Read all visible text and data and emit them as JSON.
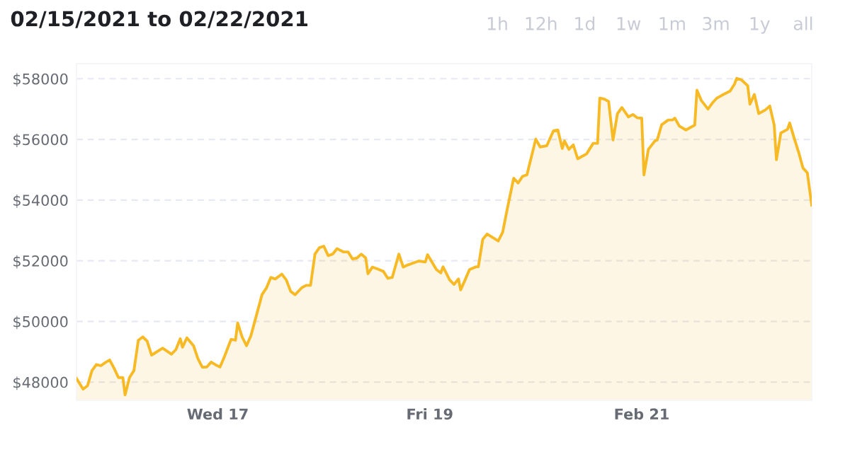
{
  "chart_data": {
    "type": "area",
    "title": "02/15/2021 to 02/22/2021",
    "annotations": [
      "1h",
      "12h",
      "1d",
      "1w",
      "1m",
      "3m",
      "1y",
      "all"
    ],
    "xlim": [
      "2021-02-15T16:00",
      "2021-02-22T14:30"
    ],
    "xticks": [
      {
        "value": "2021-02-17",
        "label": "Wed 17"
      },
      {
        "value": "2021-02-19",
        "label": "Fri 19"
      },
      {
        "value": "2021-02-21",
        "label": "Feb 21"
      }
    ],
    "ylim": [
      47400,
      58500
    ],
    "yticks": [
      {
        "value": 48000,
        "label": "$48000"
      },
      {
        "value": 50000,
        "label": "$50000"
      },
      {
        "value": 52000,
        "label": "$52000"
      },
      {
        "value": 54000,
        "label": "$54000"
      },
      {
        "value": 56000,
        "label": "$56000"
      },
      {
        "value": 58000,
        "label": "$58000"
      }
    ],
    "grid": "y",
    "legend": false,
    "x": [
      "2021-02-15T16:00",
      "2021-02-15T17:30",
      "2021-02-15T18:30",
      "2021-02-15T19:30",
      "2021-02-15T20:30",
      "2021-02-15T21:30",
      "2021-02-15T22:30",
      "2021-02-15T23:30",
      "2021-02-16T00:30",
      "2021-02-16T01:30",
      "2021-02-16T02:30",
      "2021-02-16T03:00",
      "2021-02-16T04:00",
      "2021-02-16T05:00",
      "2021-02-16T06:00",
      "2021-02-16T07:00",
      "2021-02-16T08:00",
      "2021-02-16T09:00",
      "2021-02-16T11:30",
      "2021-02-16T13:30",
      "2021-02-16T14:30",
      "2021-02-16T15:30",
      "2021-02-16T16:00",
      "2021-02-16T17:00",
      "2021-02-16T18:30",
      "2021-02-16T19:30",
      "2021-02-16T20:30",
      "2021-02-16T21:30",
      "2021-02-16T22:30",
      "2021-02-16T23:30",
      "2021-02-17T00:30",
      "2021-02-17T01:30",
      "2021-02-17T03:00",
      "2021-02-17T04:00",
      "2021-02-17T04:30",
      "2021-02-17T05:30",
      "2021-02-17T06:30",
      "2021-02-17T07:30",
      "2021-02-17T08:30",
      "2021-02-17T10:00",
      "2021-02-17T11:00",
      "2021-02-17T12:00",
      "2021-02-17T13:00",
      "2021-02-17T14:30",
      "2021-02-17T15:30",
      "2021-02-17T16:30",
      "2021-02-17T17:30",
      "2021-02-17T19:00",
      "2021-02-17T20:00",
      "2021-02-17T21:00",
      "2021-02-17T22:00",
      "2021-02-17T23:00",
      "2021-02-18T00:00",
      "2021-02-18T01:00",
      "2021-02-18T02:00",
      "2021-02-18T03:00",
      "2021-02-18T04:30",
      "2021-02-18T05:30",
      "2021-02-18T06:30",
      "2021-02-18T07:30",
      "2021-02-18T08:30",
      "2021-02-18T09:30",
      "2021-02-18T10:00",
      "2021-02-18T11:00",
      "2021-02-18T12:00",
      "2021-02-18T13:30",
      "2021-02-18T14:30",
      "2021-02-18T15:30",
      "2021-02-18T17:00",
      "2021-02-18T18:00",
      "2021-02-18T19:00",
      "2021-02-18T21:30",
      "2021-02-18T23:00",
      "2021-02-18T23:30",
      "2021-02-19T01:30",
      "2021-02-19T02:30",
      "2021-02-19T03:00",
      "2021-02-19T04:30",
      "2021-02-19T05:30",
      "2021-02-19T06:30",
      "2021-02-19T07:00",
      "2021-02-19T08:00",
      "2021-02-19T09:00",
      "2021-02-19T10:30",
      "2021-02-19T11:00",
      "2021-02-19T12:00",
      "2021-02-19T13:00",
      "2021-02-19T15:30",
      "2021-02-19T16:30",
      "2021-02-19T17:30",
      "2021-02-19T19:00",
      "2021-02-19T20:00",
      "2021-02-19T21:00",
      "2021-02-19T22:00",
      "2021-02-20T00:00",
      "2021-02-20T01:00",
      "2021-02-20T02:30",
      "2021-02-20T04:00",
      "2021-02-20T05:00",
      "2021-02-20T06:00",
      "2021-02-20T06:30",
      "2021-02-20T07:30",
      "2021-02-20T08:30",
      "2021-02-20T09:30",
      "2021-02-20T10:30",
      "2021-02-20T11:30",
      "2021-02-20T13:00",
      "2021-02-20T14:00",
      "2021-02-20T14:30",
      "2021-02-20T15:30",
      "2021-02-20T16:30",
      "2021-02-20T17:30",
      "2021-02-20T18:30",
      "2021-02-20T19:30",
      "2021-02-20T21:00",
      "2021-02-20T22:00",
      "2021-02-20T23:00",
      "2021-02-21T00:00",
      "2021-02-21T00:30",
      "2021-02-21T01:30",
      "2021-02-21T03:00",
      "2021-02-21T03:30",
      "2021-02-21T04:30",
      "2021-02-21T06:00",
      "2021-02-21T07:00",
      "2021-02-21T07:30",
      "2021-02-21T08:30",
      "2021-02-21T10:00",
      "2021-02-21T11:00",
      "2021-02-21T12:00",
      "2021-02-21T12:30",
      "2021-02-21T13:30",
      "2021-02-21T15:00",
      "2021-02-21T16:00",
      "2021-02-21T17:00",
      "2021-02-21T18:30",
      "2021-02-21T20:00",
      "2021-02-21T21:00",
      "2021-02-21T21:30",
      "2021-02-21T22:30",
      "2021-02-22T00:00",
      "2021-02-22T00:30",
      "2021-02-22T01:30",
      "2021-02-22T02:30",
      "2021-02-22T04:00",
      "2021-02-22T05:00",
      "2021-02-22T06:00",
      "2021-02-22T06:30",
      "2021-02-22T07:30",
      "2021-02-22T09:00",
      "2021-02-22T09:30",
      "2021-02-22T10:30",
      "2021-02-22T11:30",
      "2021-02-22T12:30",
      "2021-02-22T13:30",
      "2021-02-22T14:30"
    ],
    "series": [
      {
        "color": "#f7b924",
        "values": [
          48120,
          47770,
          47880,
          48380,
          48580,
          48540,
          48640,
          48730,
          48460,
          48150,
          48150,
          47580,
          48150,
          48380,
          49380,
          49490,
          49350,
          48890,
          49120,
          48920,
          49070,
          49430,
          49150,
          49460,
          49200,
          48770,
          48490,
          48500,
          48660,
          48570,
          48500,
          48840,
          49410,
          49380,
          49950,
          49490,
          49200,
          49530,
          50070,
          50880,
          51100,
          51450,
          51400,
          51560,
          51370,
          50990,
          50880,
          51110,
          51190,
          51190,
          52220,
          52430,
          52480,
          52170,
          52220,
          52400,
          52290,
          52290,
          52060,
          52090,
          52220,
          52090,
          51570,
          51790,
          51740,
          51650,
          51420,
          51450,
          52220,
          51790,
          51860,
          51990,
          51960,
          52200,
          51710,
          51600,
          51800,
          51370,
          51220,
          51400,
          51040,
          51370,
          51710,
          51800,
          51800,
          52710,
          52880,
          52650,
          52940,
          53670,
          54720,
          54560,
          54780,
          54830,
          56010,
          55750,
          55790,
          56280,
          56310,
          55700,
          55950,
          55670,
          55820,
          55360,
          55440,
          55520,
          55870,
          55870,
          57360,
          57330,
          57250,
          55980,
          56850,
          57050,
          56740,
          56820,
          56710,
          56700,
          54830,
          55670,
          55950,
          55980,
          56480,
          56640,
          56640,
          56700,
          56440,
          56310,
          56390,
          56470,
          57620,
          57280,
          57000,
          57200,
          57360,
          57480,
          57590,
          57820,
          58010,
          57970,
          57770,
          57160,
          57480,
          56850,
          56970,
          57100,
          56470,
          55330,
          56210,
          56330,
          56540,
          56050,
          55590,
          55060,
          54900,
          53830
        ]
      }
    ]
  }
}
